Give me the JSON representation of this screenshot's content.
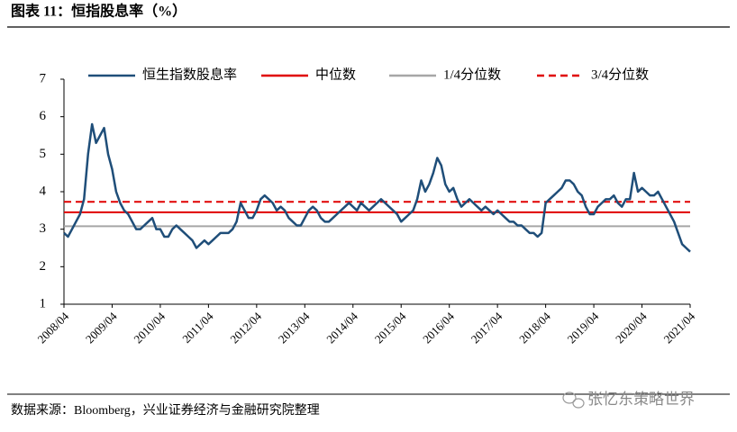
{
  "header": {
    "title": "图表 11：恒指股息率（%）"
  },
  "chart_data": {
    "type": "line",
    "x": [
      "2008/04",
      "2008/05",
      "2008/06",
      "2008/07",
      "2008/08",
      "2008/09",
      "2008/10",
      "2008/11",
      "2008/12",
      "2009/01",
      "2009/02",
      "2009/03",
      "2009/04",
      "2009/05",
      "2009/06",
      "2009/07",
      "2009/08",
      "2009/09",
      "2009/10",
      "2009/11",
      "2009/12",
      "2010/01",
      "2010/02",
      "2010/03",
      "2010/04",
      "2010/05",
      "2010/06",
      "2010/07",
      "2010/08",
      "2010/09",
      "2010/10",
      "2010/11",
      "2010/12",
      "2011/01",
      "2011/02",
      "2011/03",
      "2011/04",
      "2011/05",
      "2011/06",
      "2011/07",
      "2011/08",
      "2011/09",
      "2011/10",
      "2011/11",
      "2011/12",
      "2012/01",
      "2012/02",
      "2012/03",
      "2012/04",
      "2012/05",
      "2012/06",
      "2012/07",
      "2012/08",
      "2012/09",
      "2012/10",
      "2012/11",
      "2012/12",
      "2013/01",
      "2013/02",
      "2013/03",
      "2013/04",
      "2013/05",
      "2013/06",
      "2013/07",
      "2013/08",
      "2013/09",
      "2013/10",
      "2013/11",
      "2013/12",
      "2014/01",
      "2014/02",
      "2014/03",
      "2014/04",
      "2014/05",
      "2014/06",
      "2014/07",
      "2014/08",
      "2014/09",
      "2014/10",
      "2014/11",
      "2014/12",
      "2015/01",
      "2015/02",
      "2015/03",
      "2015/04",
      "2015/05",
      "2015/06",
      "2015/07",
      "2015/08",
      "2015/09",
      "2015/10",
      "2015/11",
      "2015/12",
      "2016/01",
      "2016/02",
      "2016/03",
      "2016/04",
      "2016/05",
      "2016/06",
      "2016/07",
      "2016/08",
      "2016/09",
      "2016/10",
      "2016/11",
      "2016/12",
      "2017/01",
      "2017/02",
      "2017/03",
      "2017/04",
      "2017/05",
      "2017/06",
      "2017/07",
      "2017/08",
      "2017/09",
      "2017/10",
      "2017/11",
      "2017/12",
      "2018/01",
      "2018/02",
      "2018/03",
      "2018/04",
      "2018/05",
      "2018/06",
      "2018/07",
      "2018/08",
      "2018/09",
      "2018/10",
      "2018/11",
      "2018/12",
      "2019/01",
      "2019/02",
      "2019/03",
      "2019/04",
      "2019/05",
      "2019/06",
      "2019/07",
      "2019/08",
      "2019/09",
      "2019/10",
      "2019/11",
      "2019/12",
      "2020/01",
      "2020/02",
      "2020/03",
      "2020/04",
      "2020/05",
      "2020/06",
      "2020/07",
      "2020/08",
      "2020/09",
      "2020/10",
      "2020/11",
      "2020/12",
      "2021/01",
      "2021/02",
      "2021/03",
      "2021/04"
    ],
    "series": [
      {
        "name": "恒生指数股息率",
        "color": "#1f4e79",
        "values": [
          2.9,
          2.8,
          3.0,
          3.2,
          3.4,
          3.8,
          5.0,
          5.8,
          5.3,
          5.5,
          5.7,
          5.0,
          4.6,
          4.0,
          3.7,
          3.5,
          3.4,
          3.2,
          3.0,
          3.0,
          3.1,
          3.2,
          3.3,
          3.0,
          3.0,
          2.8,
          2.8,
          3.0,
          3.1,
          3.0,
          2.9,
          2.8,
          2.7,
          2.5,
          2.6,
          2.7,
          2.6,
          2.7,
          2.8,
          2.9,
          2.9,
          2.9,
          3.0,
          3.2,
          3.7,
          3.5,
          3.3,
          3.3,
          3.5,
          3.8,
          3.9,
          3.8,
          3.7,
          3.5,
          3.6,
          3.5,
          3.3,
          3.2,
          3.1,
          3.1,
          3.3,
          3.5,
          3.6,
          3.5,
          3.3,
          3.2,
          3.2,
          3.3,
          3.4,
          3.5,
          3.6,
          3.7,
          3.6,
          3.5,
          3.7,
          3.6,
          3.5,
          3.6,
          3.7,
          3.8,
          3.7,
          3.6,
          3.5,
          3.4,
          3.2,
          3.3,
          3.4,
          3.5,
          3.8,
          4.3,
          4.0,
          4.2,
          4.5,
          4.9,
          4.7,
          4.2,
          4.0,
          4.1,
          3.8,
          3.6,
          3.7,
          3.8,
          3.7,
          3.6,
          3.5,
          3.6,
          3.5,
          3.4,
          3.5,
          3.4,
          3.3,
          3.2,
          3.2,
          3.1,
          3.1,
          3.0,
          2.9,
          2.9,
          2.8,
          2.9,
          3.7,
          3.8,
          3.9,
          4.0,
          4.1,
          4.3,
          4.3,
          4.2,
          4.0,
          3.9,
          3.6,
          3.4,
          3.4,
          3.6,
          3.7,
          3.8,
          3.8,
          3.9,
          3.7,
          3.6,
          3.8,
          3.8,
          4.5,
          4.0,
          4.1,
          4.0,
          3.9,
          3.9,
          4.0,
          3.8,
          3.6,
          3.4,
          3.2,
          2.9,
          2.6,
          2.5,
          2.4
        ]
      }
    ],
    "reference_lines": [
      {
        "name": "中位数",
        "color": "#e00000",
        "value": 3.45,
        "dash": false
      },
      {
        "name": "1/4分位数",
        "color": "#a6a6a6",
        "value": 3.08,
        "dash": false
      },
      {
        "name": "3/4分位数",
        "color": "#e00000",
        "value": 3.73,
        "dash": true
      }
    ],
    "xticks": [
      "2008/04",
      "2009/04",
      "2010/04",
      "2011/04",
      "2012/04",
      "2013/04",
      "2014/04",
      "2015/04",
      "2016/04",
      "2017/04",
      "2018/04",
      "2019/04",
      "2020/04",
      "2021/04"
    ],
    "ylim": [
      1,
      7
    ],
    "yticks": [
      1,
      2,
      3,
      4,
      5,
      6,
      7
    ],
    "legend": "top"
  },
  "footer": {
    "source": "数据来源：Bloomberg，兴业证券经济与金融研究院整理"
  },
  "watermark": "张忆东策略世界"
}
